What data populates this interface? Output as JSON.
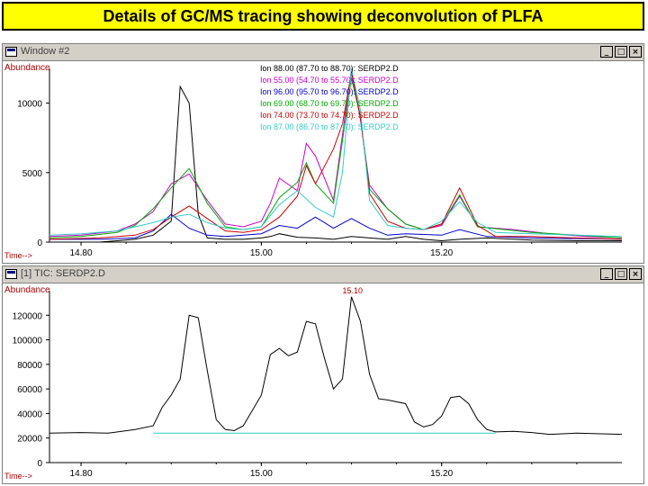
{
  "slide_title": "Details of GC/MS tracing showing deconvolution of  PLFA",
  "window1": {
    "title": "Window #2",
    "abundance_label": "Abundance",
    "time_label": "Time-->",
    "y_ticks": [
      {
        "value": 0,
        "label": "0"
      },
      {
        "value": 5000,
        "label": "5000"
      },
      {
        "value": 10000,
        "label": "10000"
      }
    ],
    "x_ticks": [
      {
        "value": 14.8,
        "label": "14.80"
      },
      {
        "value": 15.0,
        "label": "15.00"
      },
      {
        "value": 15.2,
        "label": "15.20"
      }
    ],
    "legend": [
      {
        "text": "Ion  88.00 (87.70 to 88.70): SERDP2.D",
        "color": "#000000"
      },
      {
        "text": "Ion  55.00 (54.70 to 55.70): SERDP2.D",
        "color": "#cc00cc"
      },
      {
        "text": "Ion  96.00 (95.70 to 96.70): SERDP2.D",
        "color": "#0000cc"
      },
      {
        "text": "Ion  69.00 (68.70 to 69.70): SERDP2.D",
        "color": "#00aa00"
      },
      {
        "text": "Ion  74.00 (73.70 to 74.70): SERDP2.D",
        "color": "#cc0000"
      },
      {
        "text": "Ion  87.00 (86.70 to 87.70): SERDP2.D",
        "color": "#33cccc"
      }
    ]
  },
  "window2": {
    "title": "[1] TIC: SERDP2.D",
    "abundance_label": "Abundance",
    "time_label": "Time-->",
    "peak_label": "15.10",
    "y_ticks": [
      {
        "value": 0,
        "label": "0"
      },
      {
        "value": 20000,
        "label": "20000"
      },
      {
        "value": 40000,
        "label": "40000"
      },
      {
        "value": 60000,
        "label": "60000"
      },
      {
        "value": 80000,
        "label": "80000"
      },
      {
        "value": 100000,
        "label": "100000"
      },
      {
        "value": 120000,
        "label": "120000"
      }
    ],
    "x_ticks": [
      {
        "value": 14.8,
        "label": "14.80"
      },
      {
        "value": 15.0,
        "label": "15.00"
      },
      {
        "value": 15.2,
        "label": "15.20"
      }
    ]
  },
  "buttons": {
    "minimize": "_",
    "maximize": "□",
    "close": "×"
  },
  "chart_data": [
    {
      "type": "line",
      "xlim": [
        14.765,
        15.4
      ],
      "ylim": [
        0,
        12500
      ],
      "grid": false,
      "legend_placement": "top-center",
      "series": [
        {
          "name": "Ion  88.00 (87.70 to 88.70): SERDP2.D",
          "color": "#000000",
          "x": [
            14.765,
            14.82,
            14.86,
            14.88,
            14.9,
            14.91,
            14.92,
            14.93,
            14.94,
            14.96,
            14.98,
            15.0,
            15.01,
            15.02,
            15.04,
            15.06,
            15.08,
            15.1,
            15.12,
            15.14,
            15.16,
            15.18,
            15.2,
            15.22,
            15.25,
            15.3,
            15.35,
            15.4
          ],
          "y": [
            0,
            0,
            200,
            500,
            1500,
            11200,
            10000,
            2000,
            300,
            200,
            200,
            300,
            400,
            600,
            350,
            300,
            200,
            400,
            300,
            200,
            400,
            200,
            100,
            200,
            300,
            150,
            100,
            100
          ]
        },
        {
          "name": "Ion  55.00 (54.70 to 55.70): SERDP2.D",
          "color": "#cc00cc",
          "x": [
            14.765,
            14.8,
            14.84,
            14.86,
            14.88,
            14.9,
            14.92,
            14.94,
            14.96,
            14.98,
            15.0,
            15.01,
            15.02,
            15.04,
            15.05,
            15.06,
            15.08,
            15.1,
            15.11,
            15.12,
            15.14,
            15.16,
            15.18,
            15.2,
            15.22,
            15.24,
            15.28,
            15.32,
            15.36,
            15.4
          ],
          "y": [
            400,
            500,
            800,
            1300,
            2200,
            4200,
            4900,
            3000,
            1300,
            1100,
            1500,
            2800,
            4600,
            3700,
            7100,
            6200,
            3000,
            12400,
            8800,
            4100,
            2400,
            1300,
            900,
            1200,
            3300,
            1100,
            900,
            600,
            400,
            300
          ]
        },
        {
          "name": "Ion  96.00 (95.70 to 96.70): SERDP2.D",
          "color": "#0000cc",
          "x": [
            14.765,
            14.82,
            14.86,
            14.88,
            14.9,
            14.92,
            14.94,
            14.96,
            15.0,
            15.02,
            15.04,
            15.06,
            15.08,
            15.1,
            15.12,
            15.14,
            15.16,
            15.2,
            15.22,
            15.25,
            15.3,
            15.4
          ],
          "y": [
            200,
            200,
            300,
            800,
            2000,
            1000,
            500,
            400,
            600,
            1200,
            1000,
            1800,
            1000,
            1700,
            1000,
            500,
            600,
            500,
            900,
            400,
            300,
            200
          ]
        },
        {
          "name": "Ion  69.00 (68.70 to 69.70): SERDP2.D",
          "color": "#00aa00",
          "x": [
            14.765,
            14.8,
            14.84,
            14.86,
            14.88,
            14.9,
            14.92,
            14.94,
            14.96,
            14.98,
            15.0,
            15.02,
            15.04,
            15.05,
            15.06,
            15.08,
            15.1,
            15.11,
            15.12,
            15.14,
            15.16,
            15.18,
            15.2,
            15.22,
            15.24,
            15.3,
            15.35,
            15.4
          ],
          "y": [
            300,
            400,
            700,
            1200,
            2400,
            3900,
            5300,
            2800,
            1100,
            900,
            1100,
            3200,
            4300,
            5700,
            4200,
            2800,
            11800,
            9000,
            3800,
            2400,
            1300,
            900,
            1300,
            3400,
            1100,
            700,
            500,
            300
          ]
        },
        {
          "name": "Ion  74.00 (73.70 to 74.70): SERDP2.D",
          "color": "#cc0000",
          "x": [
            14.765,
            14.82,
            14.86,
            14.88,
            14.9,
            14.92,
            14.94,
            14.96,
            14.98,
            15.0,
            15.02,
            15.04,
            15.05,
            15.06,
            15.08,
            15.09,
            15.1,
            15.11,
            15.12,
            15.14,
            15.16,
            15.18,
            15.2,
            15.22,
            15.24,
            15.26,
            15.3,
            15.35,
            15.4
          ],
          "y": [
            200,
            300,
            500,
            900,
            1800,
            2600,
            1700,
            800,
            700,
            900,
            1800,
            3300,
            5500,
            4200,
            6700,
            8500,
            12200,
            9000,
            3500,
            1500,
            1000,
            900,
            1300,
            3900,
            1200,
            400,
            400,
            300,
            200
          ]
        },
        {
          "name": "Ion  87.00 (86.70 to 87.70): SERDP2.D",
          "color": "#33cccc",
          "x": [
            14.765,
            14.8,
            14.84,
            14.86,
            14.88,
            14.9,
            14.92,
            14.94,
            14.96,
            14.98,
            15.0,
            15.02,
            15.04,
            15.06,
            15.08,
            15.09,
            15.1,
            15.11,
            15.12,
            15.14,
            15.16,
            15.18,
            15.2,
            15.22,
            15.24,
            15.26,
            15.3,
            15.35,
            15.4
          ],
          "y": [
            500,
            600,
            800,
            1100,
            1400,
            1800,
            2000,
            1400,
            1000,
            900,
            1100,
            2700,
            3700,
            2500,
            1800,
            5000,
            12500,
            9500,
            3000,
            1200,
            1000,
            900,
            1500,
            2900,
            1400,
            700,
            600,
            500,
            400
          ]
        }
      ]
    },
    {
      "type": "line",
      "xlim": [
        14.765,
        15.4
      ],
      "ylim": [
        0,
        140000
      ],
      "grid": false,
      "series": [
        {
          "name": "TIC: SERDP2.D",
          "color": "#000000",
          "x": [
            14.765,
            14.8,
            14.83,
            14.86,
            14.88,
            14.89,
            14.9,
            14.91,
            14.92,
            14.93,
            14.94,
            14.95,
            14.96,
            14.97,
            14.98,
            15.0,
            15.01,
            15.02,
            15.03,
            15.04,
            15.05,
            15.06,
            15.07,
            15.08,
            15.09,
            15.1,
            15.11,
            15.12,
            15.13,
            15.14,
            15.16,
            15.17,
            15.18,
            15.19,
            15.2,
            15.21,
            15.22,
            15.23,
            15.24,
            15.25,
            15.26,
            15.28,
            15.3,
            15.32,
            15.35,
            15.4
          ],
          "y": [
            24000,
            24500,
            24000,
            27000,
            30000,
            45000,
            55000,
            68000,
            120000,
            118000,
            75000,
            35000,
            27000,
            26000,
            30000,
            55000,
            88000,
            93000,
            87000,
            90000,
            115000,
            113000,
            85000,
            60000,
            68000,
            135000,
            115000,
            72000,
            52000,
            51000,
            48000,
            33000,
            29000,
            31000,
            38000,
            53000,
            54000,
            48000,
            35000,
            27000,
            25000,
            25500,
            24500,
            23000,
            24000,
            23000
          ]
        },
        {
          "name": "baseline",
          "color": "#33cccc",
          "x": [
            14.88,
            15.26
          ],
          "y": [
            24000,
            24000
          ]
        }
      ]
    }
  ]
}
